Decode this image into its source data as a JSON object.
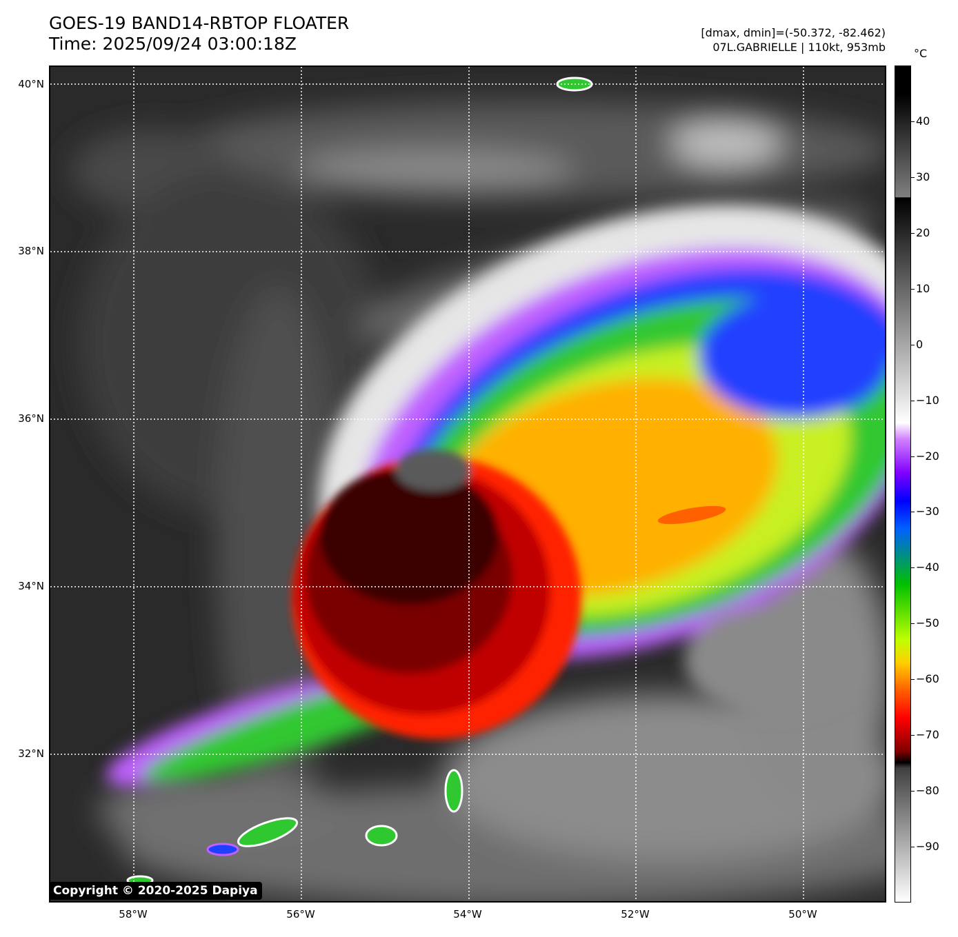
{
  "header": {
    "title_line1": "GOES-19 BAND14-RBTOP FLOATER",
    "title_line2": "Time: 2025/09/24 03:00:18Z",
    "info_line1": "[dmax, dmin]=(-50.372, -82.462)",
    "info_line2": "07L.GABRIELLE | 110kt, 953mb"
  },
  "map": {
    "lat_labels": [
      "40°N",
      "38°N",
      "36°N",
      "34°N",
      "32°N"
    ],
    "lon_labels": [
      "58°W",
      "56°W",
      "54°W",
      "52°W",
      "50°W"
    ],
    "copyright": "Copyright © 2020-2025 Dapiya",
    "storm_name": "07L.GABRIELLE",
    "intensity_kt": 110,
    "pressure_mb": 953
  },
  "colorbar": {
    "unit": "°C",
    "tick_labels": [
      "40",
      "30",
      "20",
      "10",
      "0",
      "−10",
      "−20",
      "−30",
      "−40",
      "−50",
      "−60",
      "−70",
      "−80",
      "−90"
    ],
    "tick_values": [
      40,
      30,
      20,
      10,
      0,
      -10,
      -20,
      -30,
      -40,
      -50,
      -60,
      -70,
      -80,
      -90
    ],
    "range": [
      -100,
      50
    ]
  }
}
